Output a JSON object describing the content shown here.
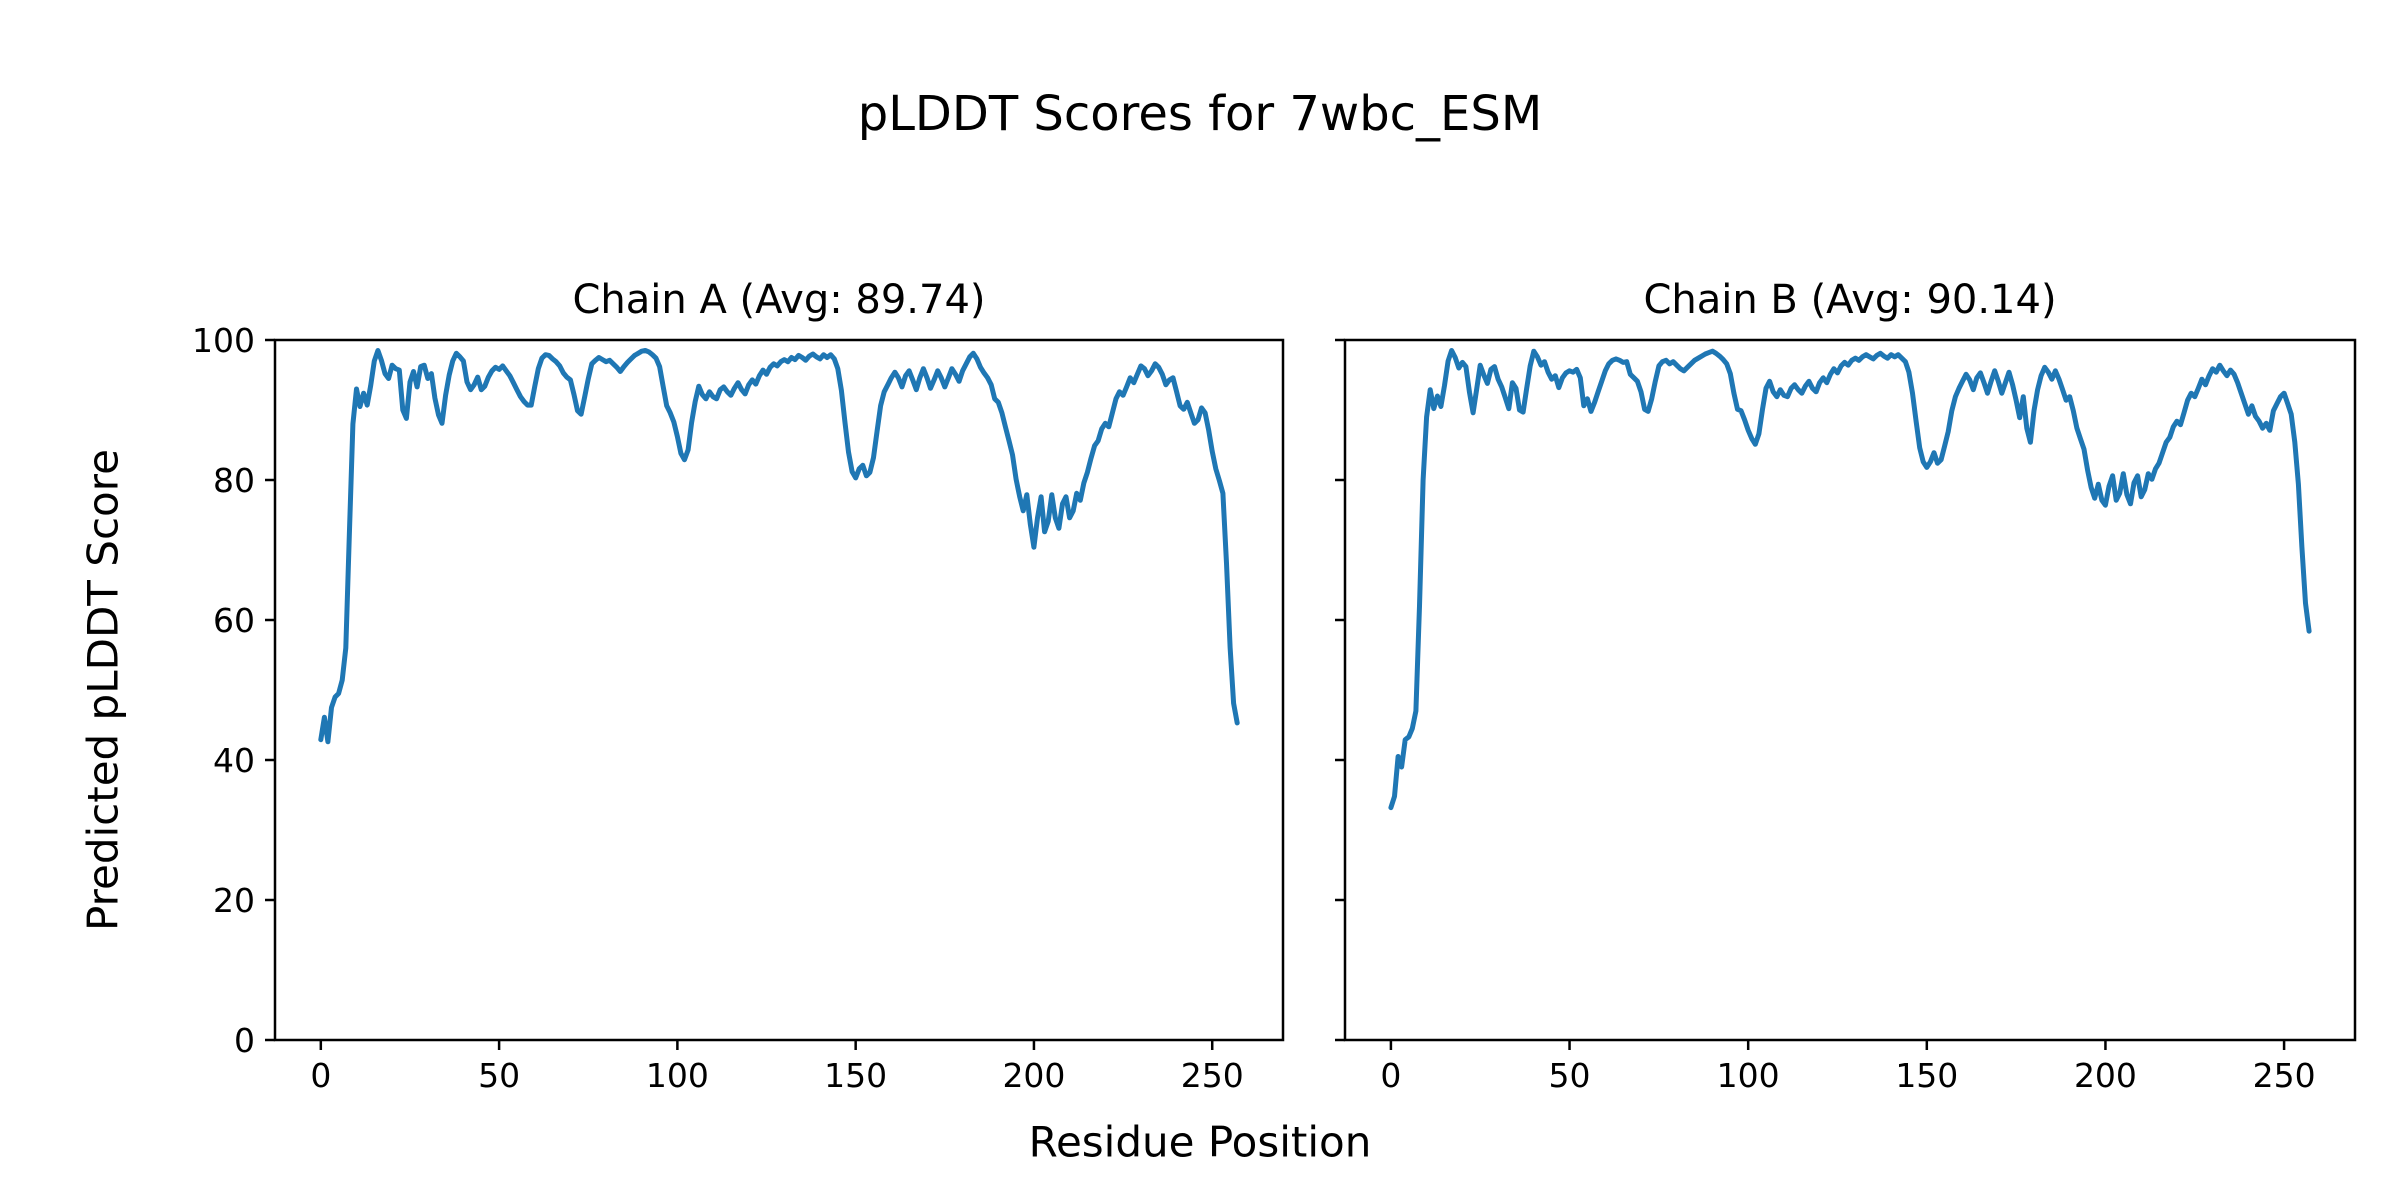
{
  "figure": {
    "title": "pLDDT Scores for 7wbc_ESM"
  },
  "axes_labels": {
    "xlabel": "Residue Position",
    "ylabel": "Predicted pLDDT Score"
  },
  "chart_data": {
    "type": "line",
    "title": "pLDDT Scores for 7wbc_ESM",
    "xlabel": "Residue Position",
    "ylabel": "Predicted pLDDT Score",
    "line_color": "#1f77b4",
    "background_color": "#ffffff",
    "grid": false,
    "legend": null,
    "xlim": [
      -12.85,
      269.85
    ],
    "ylim": [
      0,
      100
    ],
    "x_ticks": [
      0,
      50,
      100,
      150,
      200,
      250
    ],
    "y_ticks": [
      0,
      20,
      40,
      60,
      80,
      100
    ],
    "x_start": 0,
    "x_step": 1,
    "subplots": [
      {
        "title": "Chain A (Avg: 89.74)",
        "chain": "A",
        "avg": 89.74,
        "y_tick_labels_visible": true,
        "values": [
          42.9,
          46.1,
          42.6,
          47.5,
          49.0,
          49.5,
          51.4,
          56.0,
          72.0,
          88.0,
          93.0,
          90.5,
          92.4,
          90.7,
          93.5,
          97.0,
          98.5,
          97.1,
          95.2,
          94.5,
          96.4,
          95.9,
          95.7,
          90.0,
          88.8,
          94.0,
          95.5,
          93.3,
          96.2,
          96.4,
          94.5,
          95.2,
          91.7,
          89.3,
          88.1,
          92.1,
          95.0,
          97.0,
          98.1,
          97.6,
          97.0,
          94.0,
          92.9,
          93.6,
          94.7,
          92.9,
          93.4,
          94.7,
          95.6,
          96.1,
          95.8,
          96.3,
          95.6,
          94.9,
          93.9,
          92.9,
          91.9,
          91.2,
          90.7,
          90.7,
          93.4,
          95.9,
          97.4,
          97.9,
          97.8,
          97.3,
          96.9,
          96.3,
          95.3,
          94.7,
          94.3,
          92.2,
          89.9,
          89.4,
          91.9,
          94.4,
          96.6,
          97.1,
          97.5,
          97.2,
          96.9,
          97.1,
          96.6,
          96.1,
          95.5,
          96.2,
          96.8,
          97.3,
          97.8,
          98.1,
          98.4,
          98.5,
          98.3,
          97.9,
          97.4,
          96.2,
          93.4,
          90.6,
          89.6,
          88.3,
          86.2,
          83.8,
          82.9,
          84.3,
          88.2,
          91.2,
          93.4,
          92.2,
          91.6,
          92.6,
          91.9,
          91.6,
          92.9,
          93.3,
          92.6,
          92.1,
          93.1,
          93.9,
          92.9,
          92.3,
          93.6,
          94.3,
          93.7,
          94.9,
          95.7,
          95.1,
          96.1,
          96.6,
          96.3,
          96.9,
          97.2,
          96.9,
          97.5,
          97.2,
          97.8,
          97.5,
          97.1,
          97.7,
          98.0,
          97.6,
          97.3,
          97.9,
          97.5,
          97.9,
          97.3,
          95.9,
          92.8,
          88.2,
          84.0,
          81.2,
          80.3,
          81.6,
          82.1,
          80.6,
          81.1,
          83.2,
          87.0,
          90.6,
          92.6,
          93.6,
          94.6,
          95.4,
          94.6,
          93.3,
          94.9,
          95.6,
          94.3,
          92.9,
          94.6,
          95.9,
          94.6,
          93.1,
          94.3,
          95.6,
          94.6,
          93.3,
          94.6,
          95.9,
          95.1,
          94.1,
          95.6,
          96.6,
          97.6,
          98.1,
          97.3,
          96.1,
          95.3,
          94.6,
          93.6,
          91.6,
          91.1,
          89.6,
          87.6,
          85.6,
          83.6,
          80.1,
          77.6,
          75.6,
          77.9,
          73.6,
          70.4,
          74.6,
          77.6,
          72.6,
          74.1,
          77.9,
          74.6,
          73.1,
          76.6,
          77.6,
          74.6,
          75.6,
          78.1,
          77.1,
          79.6,
          81.1,
          83.1,
          84.9,
          85.6,
          87.3,
          88.1,
          87.6,
          89.6,
          91.6,
          92.6,
          92.1,
          93.3,
          94.6,
          93.9,
          95.1,
          96.3,
          95.9,
          94.9,
          95.6,
          96.6,
          96.1,
          95.1,
          93.6,
          94.3,
          94.6,
          92.6,
          90.6,
          90.1,
          91.1,
          89.6,
          88.1,
          88.6,
          90.3,
          89.6,
          87.1,
          84.1,
          81.6,
          79.9,
          78.1,
          68.1,
          56.1,
          48.1,
          45.3
        ]
      },
      {
        "title": "Chain B (Avg: 90.14)",
        "chain": "B",
        "avg": 90.14,
        "y_tick_labels_visible": false,
        "values": [
          33.2,
          34.8,
          40.5,
          39.0,
          42.9,
          43.3,
          44.5,
          47.0,
          62.0,
          80.0,
          89.0,
          92.9,
          90.2,
          92.0,
          90.5,
          93.5,
          97.0,
          98.5,
          97.5,
          96.0,
          96.8,
          96.2,
          92.5,
          89.6,
          93.0,
          96.4,
          95.0,
          93.8,
          95.8,
          96.2,
          94.4,
          93.3,
          91.8,
          90.2,
          93.9,
          93.1,
          90.0,
          89.7,
          93.1,
          96.3,
          98.4,
          97.6,
          96.4,
          96.9,
          95.4,
          94.4,
          94.9,
          93.2,
          94.6,
          95.3,
          95.6,
          95.4,
          95.8,
          94.6,
          90.6,
          91.6,
          89.8,
          91.1,
          92.6,
          94.1,
          95.6,
          96.6,
          97.1,
          97.3,
          97.1,
          96.8,
          96.9,
          95.1,
          94.6,
          94.1,
          92.6,
          90.1,
          89.8,
          91.6,
          94.1,
          96.3,
          96.9,
          97.1,
          96.6,
          96.9,
          96.4,
          95.9,
          95.6,
          96.1,
          96.6,
          97.1,
          97.4,
          97.7,
          98.0,
          98.2,
          98.4,
          98.1,
          97.7,
          97.2,
          96.6,
          95.2,
          92.4,
          90.1,
          89.9,
          88.6,
          87.1,
          85.9,
          85.1,
          86.6,
          90.1,
          93.1,
          94.1,
          92.6,
          91.9,
          92.9,
          92.1,
          91.9,
          93.1,
          93.6,
          92.9,
          92.4,
          93.4,
          94.1,
          93.1,
          92.6,
          93.9,
          94.6,
          93.9,
          95.1,
          95.9,
          95.3,
          96.3,
          96.8,
          96.4,
          97.1,
          97.4,
          97.1,
          97.6,
          97.9,
          97.6,
          97.3,
          97.8,
          98.1,
          97.7,
          97.4,
          97.9,
          97.6,
          97.9,
          97.4,
          96.9,
          95.4,
          92.4,
          88.4,
          84.6,
          82.6,
          81.8,
          82.6,
          83.9,
          82.4,
          82.9,
          84.9,
          86.9,
          89.9,
          91.9,
          93.1,
          94.1,
          95.1,
          94.3,
          92.9,
          94.6,
          95.3,
          93.9,
          92.4,
          94.1,
          95.6,
          94.1,
          92.4,
          93.9,
          95.4,
          93.6,
          91.4,
          88.9,
          91.9,
          87.4,
          85.4,
          89.9,
          92.9,
          94.9,
          96.1,
          95.4,
          94.4,
          95.6,
          94.4,
          92.9,
          91.4,
          91.9,
          89.9,
          87.4,
          85.9,
          84.4,
          81.4,
          78.9,
          77.4,
          79.4,
          77.1,
          76.4,
          79.1,
          80.6,
          77.1,
          78.1,
          80.9,
          77.9,
          76.6,
          79.6,
          80.6,
          77.6,
          78.6,
          80.9,
          80.1,
          81.6,
          82.4,
          83.9,
          85.4,
          86.1,
          87.6,
          88.4,
          87.9,
          89.6,
          91.4,
          92.4,
          91.9,
          93.1,
          94.4,
          93.6,
          94.9,
          95.9,
          95.4,
          96.4,
          95.6,
          94.9,
          95.7,
          95.1,
          93.9,
          92.4,
          90.9,
          89.4,
          90.6,
          89.1,
          88.4,
          87.4,
          88.1,
          87.1,
          89.9,
          90.9,
          91.9,
          92.4,
          90.9,
          89.4,
          85.4,
          79.4,
          70.4,
          62.4,
          58.4
        ]
      }
    ]
  }
}
